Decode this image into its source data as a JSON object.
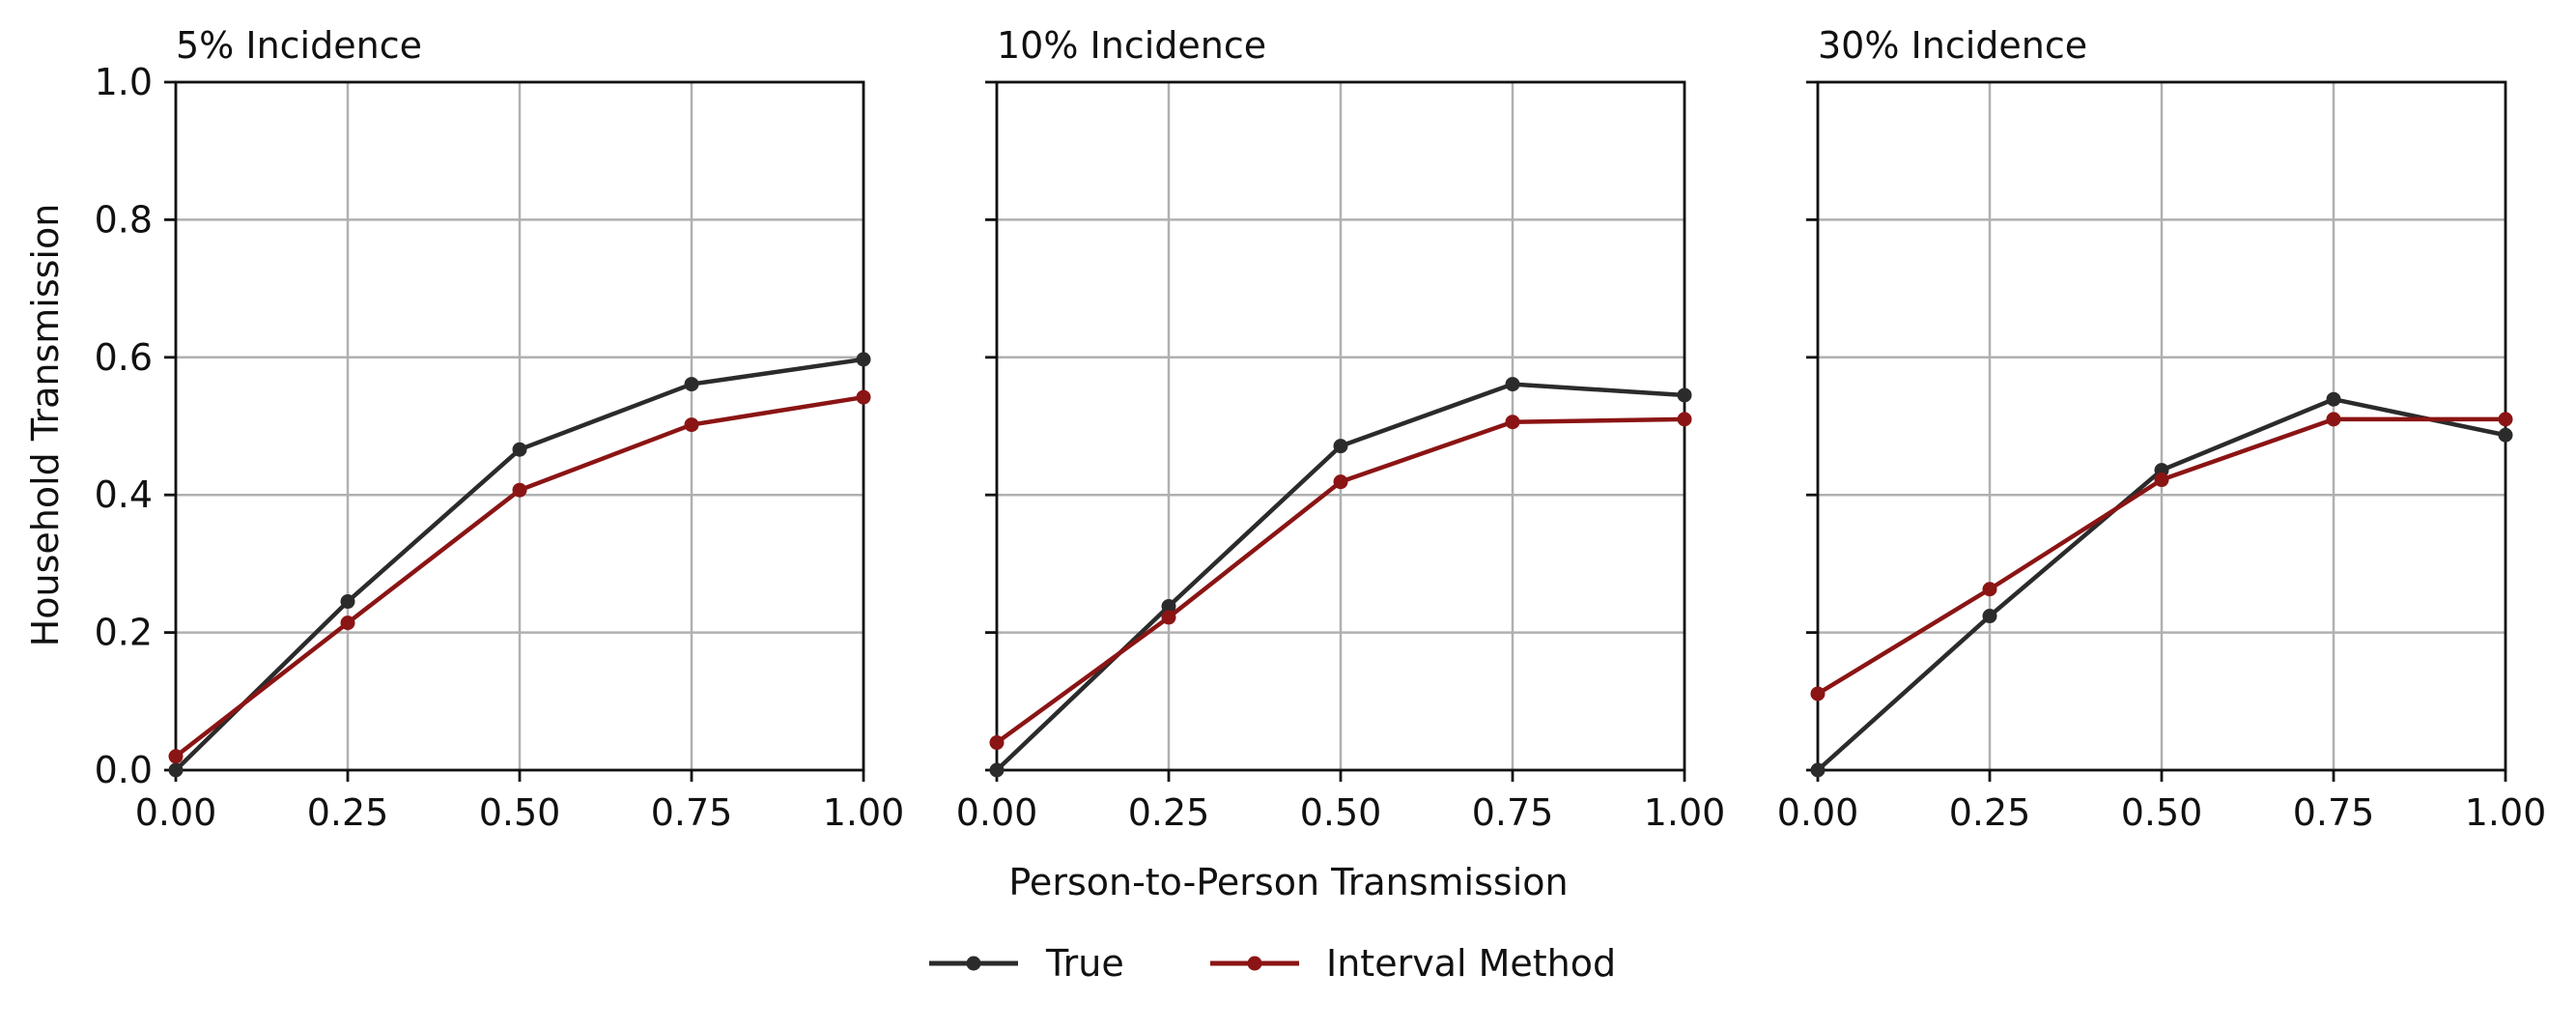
{
  "figure": {
    "xlabel": "Person-to-Person Transmission",
    "ylabel": "Household Transmission"
  },
  "legend": {
    "placement": "bottom-center",
    "entries": [
      {
        "label": "True",
        "color": "#2b2b2b"
      },
      {
        "label": "Interval Method",
        "color": "#8b1414"
      }
    ]
  },
  "chart_data": [
    {
      "type": "line",
      "title": "5% Incidence",
      "x": [
        0.0,
        0.25,
        0.5,
        0.75,
        1.0
      ],
      "xlim": [
        0,
        1
      ],
      "ylim": [
        0,
        1
      ],
      "xticks": [
        "0.00",
        "0.25",
        "0.50",
        "0.75",
        "1.00"
      ],
      "yticks": [
        "0.0",
        "0.2",
        "0.4",
        "0.6",
        "0.8",
        "1.0"
      ],
      "grid": true,
      "series": [
        {
          "name": "True",
          "color": "#2b2b2b",
          "values": [
            0.0,
            0.245,
            0.466,
            0.561,
            0.597
          ]
        },
        {
          "name": "Interval Method",
          "color": "#8b1414",
          "values": [
            0.02,
            0.214,
            0.407,
            0.502,
            0.542
          ]
        }
      ]
    },
    {
      "type": "line",
      "title": "10% Incidence",
      "x": [
        0.0,
        0.25,
        0.5,
        0.75,
        1.0
      ],
      "xlim": [
        0,
        1
      ],
      "ylim": [
        0,
        1
      ],
      "xticks": [
        "0.00",
        "0.25",
        "0.50",
        "0.75",
        "1.00"
      ],
      "yticks": [],
      "grid": true,
      "series": [
        {
          "name": "True",
          "color": "#2b2b2b",
          "values": [
            0.0,
            0.238,
            0.471,
            0.561,
            0.545
          ]
        },
        {
          "name": "Interval Method",
          "color": "#8b1414",
          "values": [
            0.04,
            0.222,
            0.419,
            0.506,
            0.51
          ]
        }
      ]
    },
    {
      "type": "line",
      "title": "30% Incidence",
      "x": [
        0.0,
        0.25,
        0.5,
        0.75,
        1.0
      ],
      "xlim": [
        0,
        1
      ],
      "ylim": [
        0,
        1
      ],
      "xticks": [
        "0.00",
        "0.25",
        "0.50",
        "0.75",
        "1.00"
      ],
      "yticks": [],
      "grid": true,
      "series": [
        {
          "name": "True",
          "color": "#2b2b2b",
          "values": [
            0.0,
            0.224,
            0.436,
            0.539,
            0.487
          ]
        },
        {
          "name": "Interval Method",
          "color": "#8b1414",
          "values": [
            0.111,
            0.263,
            0.422,
            0.51,
            0.51
          ]
        }
      ]
    }
  ]
}
